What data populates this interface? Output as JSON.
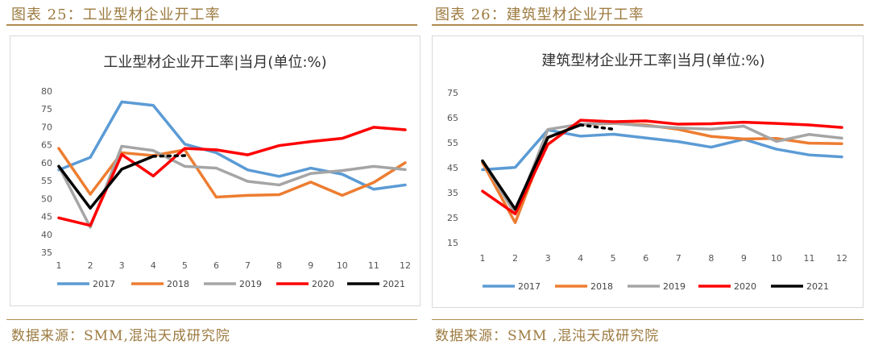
{
  "captions": {
    "left": "图表 25：工业型材企业开工率",
    "right": "图表 26：建筑型材企业开工率"
  },
  "sources": {
    "left": "数据来源：SMM,混沌天成研究院",
    "right": "数据来源：SMM ,混沌天成研究院"
  },
  "colors": {
    "caption": "#9c7a3f",
    "rule": "#b08c4f"
  },
  "chart_data": [
    {
      "type": "line",
      "title": "工业型材企业开工率|当月(单位:%)",
      "categories": [
        "1",
        "2",
        "3",
        "4",
        "5",
        "6",
        "7",
        "8",
        "9",
        "10",
        "11",
        "12"
      ],
      "ylim": [
        35,
        80
      ],
      "yticks": [
        "35",
        "40",
        "45",
        "50",
        "55",
        "60",
        "65",
        "70",
        "75",
        "80"
      ],
      "grid": false,
      "legend_position": "bottom",
      "series": [
        {
          "name": "2017",
          "color": "#5b9bd5",
          "values": [
            58.0,
            61.5,
            77.0,
            76.0,
            65.2,
            62.8,
            58.0,
            56.2,
            58.5,
            56.8,
            52.6,
            53.8
          ]
        },
        {
          "name": "2018",
          "color": "#ed7d31",
          "values": [
            64.0,
            51.2,
            62.8,
            62.0,
            63.6,
            50.4,
            50.9,
            51.1,
            54.6,
            50.9,
            54.5,
            60.0
          ]
        },
        {
          "name": "2019",
          "color": "#a5a5a5",
          "values": [
            59.0,
            42.0,
            64.6,
            63.4,
            59.0,
            58.5,
            54.8,
            53.8,
            57.0,
            57.8,
            59.0,
            58.1
          ]
        },
        {
          "name": "2020",
          "color": "#ff0000",
          "values": [
            44.6,
            42.5,
            62.3,
            56.3,
            64.0,
            63.6,
            62.2,
            64.8,
            65.9,
            66.8,
            69.9,
            69.2
          ]
        },
        {
          "name": "2021",
          "color": "#000000",
          "values": [
            59.0,
            47.3,
            58.2,
            61.8,
            62.0,
            null,
            null,
            null,
            null,
            null,
            null,
            null
          ],
          "dashed_from_index": 3
        }
      ]
    },
    {
      "type": "line",
      "title": "建筑型材企业开工率|当月(单位:%)",
      "categories": [
        "1",
        "2",
        "3",
        "4",
        "5",
        "6",
        "7",
        "8",
        "9",
        "10",
        "11",
        "12"
      ],
      "ylim": [
        15,
        75
      ],
      "yticks": [
        "15",
        "25",
        "35",
        "45",
        "55",
        "65",
        "75"
      ],
      "grid": false,
      "legend_position": "bottom",
      "series": [
        {
          "name": "2017",
          "color": "#5b9bd5",
          "values": [
            44.2,
            45.1,
            60.1,
            57.6,
            58.4,
            56.9,
            55.4,
            53.2,
            56.4,
            52.4,
            50.1,
            49.3
          ]
        },
        {
          "name": "2018",
          "color": "#ed7d31",
          "values": [
            47.0,
            23.0,
            57.0,
            62.3,
            62.7,
            62.1,
            60.3,
            57.5,
            56.5,
            56.7,
            54.8,
            54.6
          ]
        },
        {
          "name": "2019",
          "color": "#a5a5a5",
          "values": [
            47.8,
            26.5,
            60.3,
            62.4,
            62.8,
            61.7,
            60.9,
            60.4,
            61.6,
            55.5,
            58.3,
            56.8
          ]
        },
        {
          "name": "2020",
          "color": "#ff0000",
          "values": [
            35.6,
            26.5,
            54.3,
            64.0,
            63.4,
            63.7,
            62.4,
            62.6,
            63.2,
            62.7,
            62.1,
            61.1
          ]
        },
        {
          "name": "2021",
          "color": "#000000",
          "values": [
            47.7,
            28.4,
            57.1,
            62.1,
            60.4,
            null,
            null,
            null,
            null,
            null,
            null,
            null
          ],
          "dashed_from_index": 3
        }
      ]
    }
  ]
}
